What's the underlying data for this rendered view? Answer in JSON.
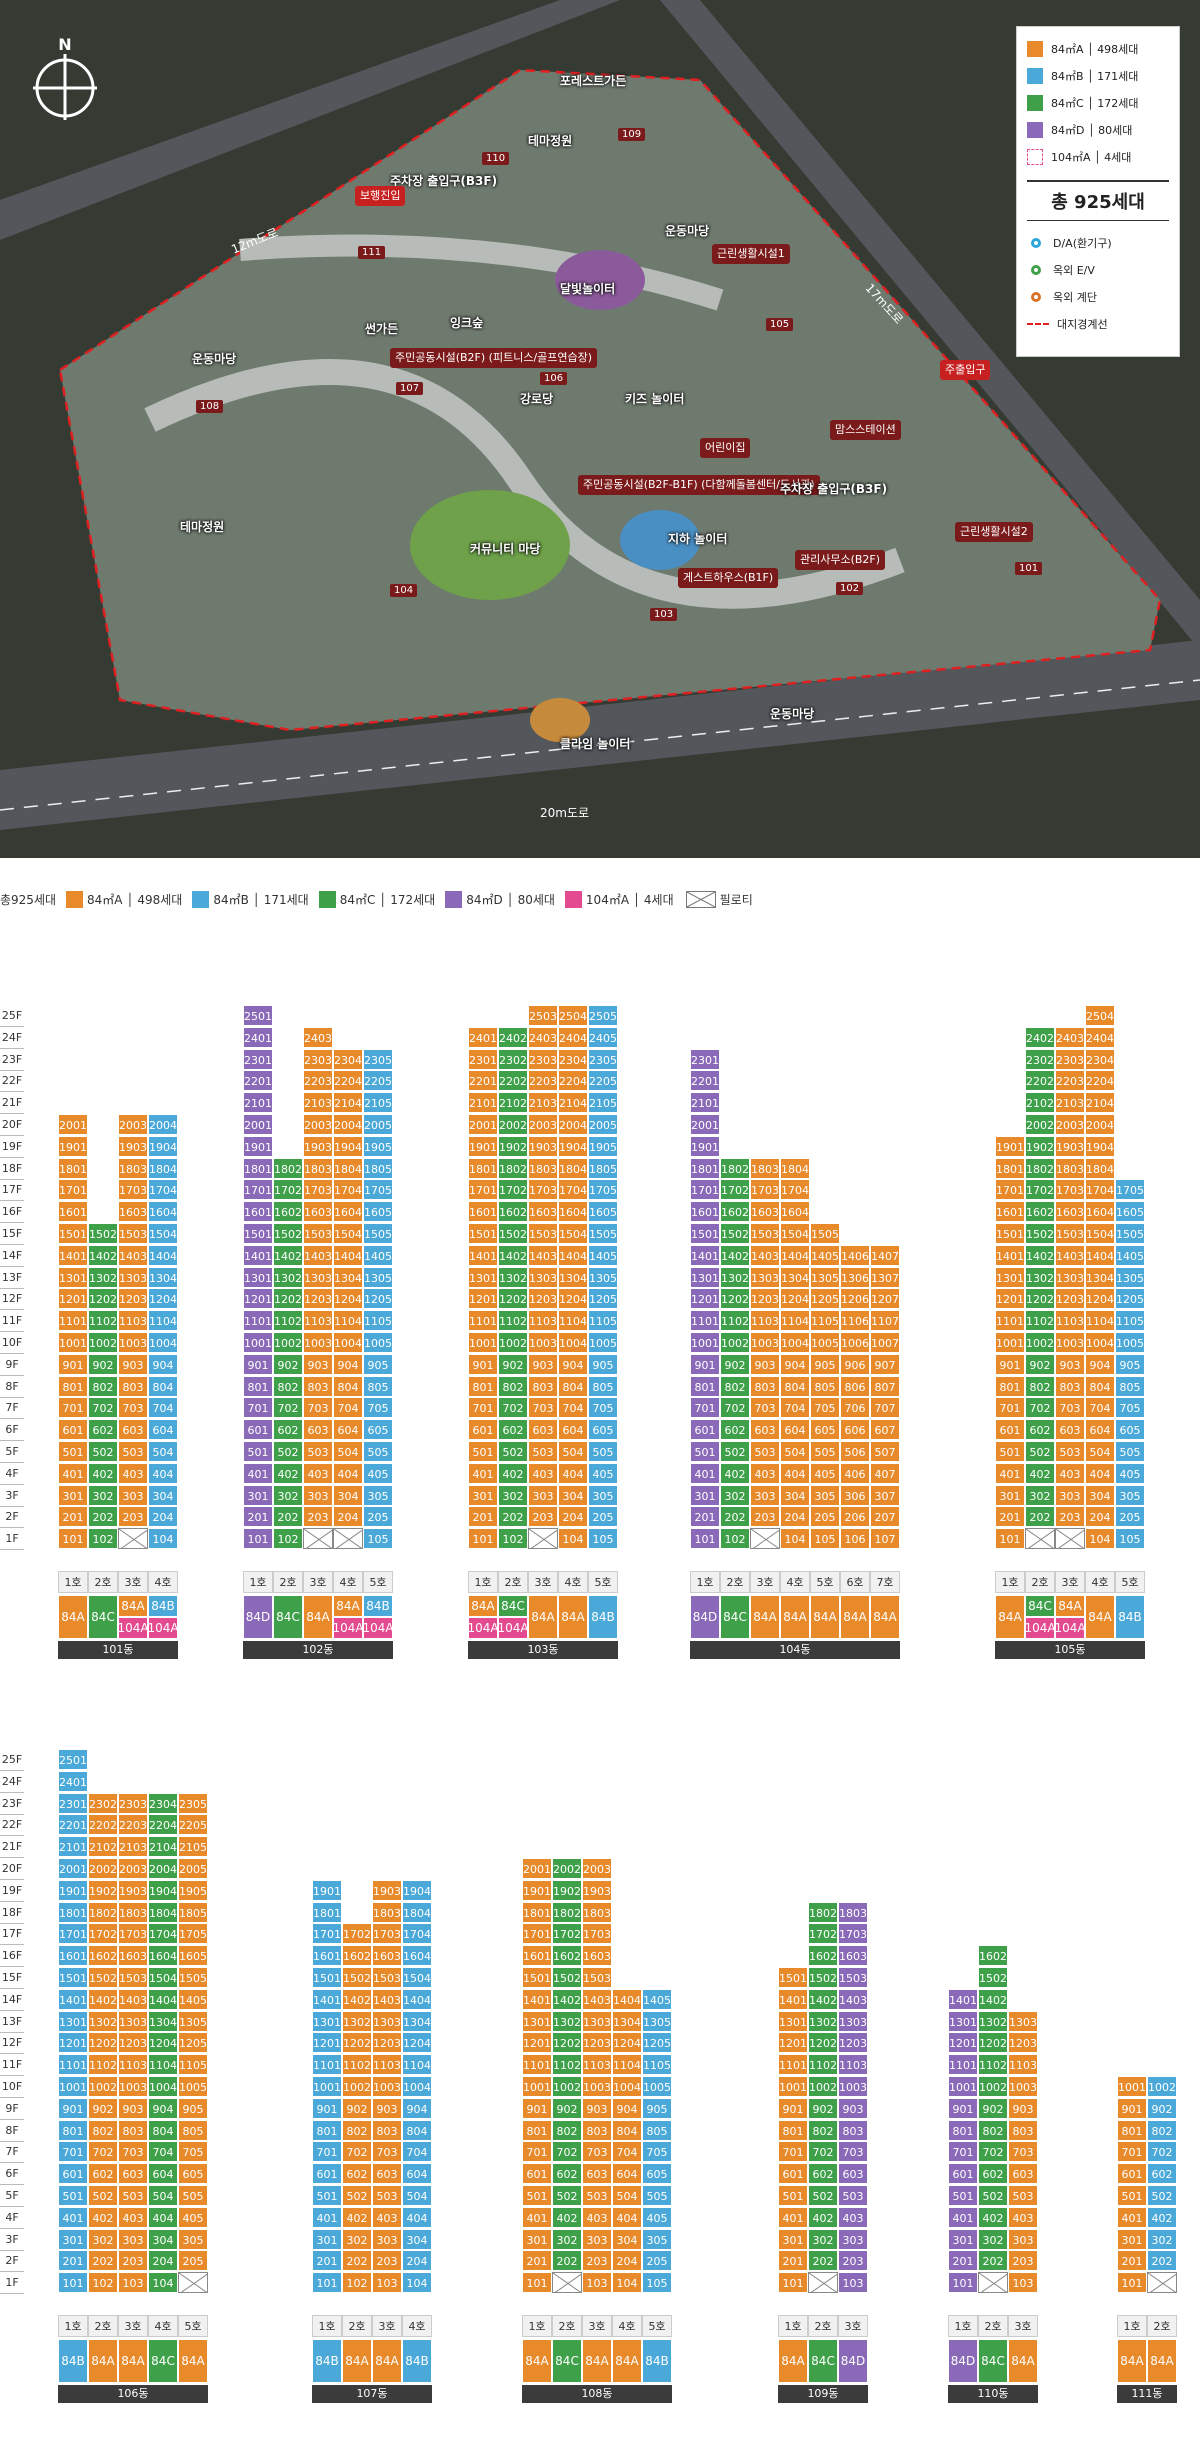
{
  "colors": {
    "A": "#e8892a",
    "B": "#4aa9d8",
    "C": "#3ea14a",
    "D": "#8a6ab8",
    "E": "#e44a8f"
  },
  "map": {
    "labels": [
      "포레스트가든",
      "테마정원",
      "주차장 출입구(B3F)",
      "운동마당",
      "근린생활시설1",
      "달빛놀이터",
      "썬가든",
      "잉크숲",
      "운동마당",
      "주민공동시설(B2F) (피트니스/골프연습장)",
      "강로당",
      "키즈 놀이터",
      "어린이집",
      "맘스스테이션",
      "테마정원",
      "주민공동시설(B2F-B1F) (다함께돌봄센터/도서관)",
      "커뮤니티 마당",
      "지하 놀이터",
      "주차장 출입구(B3F)",
      "근린생활시설2",
      "관리사무소(B2F)",
      "게스트하우스(B1F)",
      "운동마당",
      "클라임 놀이터",
      "보행진입",
      "주출입구",
      "12m도로",
      "17m도로",
      "20m도로"
    ],
    "buildings": [
      "110",
      "109",
      "111",
      "105",
      "106",
      "107",
      "108",
      "104",
      "103",
      "102",
      "101"
    ]
  },
  "legend": {
    "items": [
      {
        "k": "A",
        "t": "84㎡A │ 498세대"
      },
      {
        "k": "B",
        "t": "84㎡B │ 171세대"
      },
      {
        "k": "C",
        "t": "84㎡C │ 172세대"
      },
      {
        "k": "D",
        "t": "84㎡D │ 80세대"
      },
      {
        "k": "E",
        "t": "104㎡A │ 4세대"
      }
    ],
    "total": "총 925세대",
    "icons": [
      "D/A(환기구)",
      "옥외 E/V",
      "옥외 계단",
      "대지경계선"
    ]
  },
  "legend2": {
    "title": "총925세대",
    "items": [
      {
        "k": "A",
        "t": "84㎡A │ 498세대"
      },
      {
        "k": "B",
        "t": "84㎡B │ 171세대"
      },
      {
        "k": "C",
        "t": "84㎡C │ 172세대"
      },
      {
        "k": "D",
        "t": "84㎡D │ 80세대"
      },
      {
        "k": "E",
        "t": "104㎡A │ 4세대"
      }
    ],
    "pilotis": "필로티"
  },
  "type_labels": {
    "A": "84A",
    "B": "84B",
    "C": "84C",
    "D": "84D",
    "E": "104A"
  },
  "ho_suffix": "호",
  "dong_suffix": "동",
  "buildings": [
    {
      "dong": "101",
      "row": 0,
      "cols": [
        {
          "ty": "A",
          "top": 20,
          "pil": []
        },
        {
          "ty": "C",
          "top": 15,
          "pil": []
        },
        {
          "ty": "A",
          "top": 20,
          "pil": [
            1
          ],
          "pent": 21
        },
        {
          "ty": "B",
          "top": 20,
          "pil": []
        }
      ],
      "types": [
        [
          "A"
        ],
        [
          "C"
        ],
        [
          "A",
          "E"
        ],
        [
          "B",
          "E"
        ]
      ]
    },
    {
      "dong": "102",
      "row": 0,
      "cols": [
        {
          "ty": "D",
          "top": 25,
          "pil": []
        },
        {
          "ty": "C",
          "top": 18,
          "pil": []
        },
        {
          "ty": "A",
          "top": 24,
          "pil": [
            1
          ]
        },
        {
          "ty": "A",
          "top": 23,
          "pil": [
            1
          ],
          "pent": 24
        },
        {
          "ty": "B",
          "top": 23,
          "pil": []
        }
      ],
      "types": [
        [
          "D"
        ],
        [
          "C"
        ],
        [
          "A"
        ],
        [
          "A",
          "E"
        ],
        [
          "B",
          "E"
        ]
      ]
    },
    {
      "dong": "103",
      "row": 0,
      "cols": [
        {
          "ty": "A",
          "top": 24,
          "pil": [],
          "pent": 25
        },
        {
          "ty": "C",
          "top": 24,
          "pil": []
        },
        {
          "ty": "A",
          "top": 25,
          "pil": [
            1
          ]
        },
        {
          "ty": "A",
          "top": 25,
          "pil": []
        },
        {
          "ty": "B",
          "top": 25,
          "pil": []
        }
      ],
      "types": [
        [
          "A",
          "E"
        ],
        [
          "C",
          "E"
        ],
        [
          "A"
        ],
        [
          "A"
        ],
        [
          "B"
        ]
      ]
    },
    {
      "dong": "104",
      "row": 0,
      "cols": [
        {
          "ty": "D",
          "top": 23,
          "pil": []
        },
        {
          "ty": "C",
          "top": 18,
          "pil": []
        },
        {
          "ty": "A",
          "top": 18,
          "pil": [
            1
          ]
        },
        {
          "ty": "A",
          "top": 18,
          "pil": []
        },
        {
          "ty": "A",
          "top": 15,
          "pil": []
        },
        {
          "ty": "A",
          "top": 14,
          "pil": []
        },
        {
          "ty": "A",
          "top": 14,
          "pil": []
        }
      ],
      "types": [
        [
          "D"
        ],
        [
          "C"
        ],
        [
          "A"
        ],
        [
          "A"
        ],
        [
          "A"
        ],
        [
          "A"
        ],
        [
          "A"
        ]
      ]
    },
    {
      "dong": "105",
      "row": 0,
      "cols": [
        {
          "ty": "A",
          "top": 19,
          "pil": []
        },
        {
          "ty": "C",
          "top": 24,
          "pil": [
            1
          ],
          "pent": 25
        },
        {
          "ty": "A",
          "top": 24,
          "pil": [
            1
          ],
          "pent": 25
        },
        {
          "ty": "A",
          "top": 25,
          "pil": []
        },
        {
          "ty": "B",
          "top": 17,
          "pil": []
        }
      ],
      "types": [
        [
          "A"
        ],
        [
          "C",
          "E"
        ],
        [
          "A",
          "E"
        ],
        [
          "A"
        ],
        [
          "B"
        ]
      ]
    },
    {
      "dong": "106",
      "row": 1,
      "cols": [
        {
          "ty": "B",
          "top": 25,
          "pil": []
        },
        {
          "ty": "A",
          "top": 23,
          "pil": []
        },
        {
          "ty": "A",
          "top": 23,
          "pil": []
        },
        {
          "ty": "C",
          "top": 23,
          "pil": []
        },
        {
          "ty": "A",
          "top": 23,
          "pil": [
            1
          ]
        }
      ],
      "types": [
        [
          "B"
        ],
        [
          "A"
        ],
        [
          "A"
        ],
        [
          "C"
        ],
        [
          "A"
        ]
      ]
    },
    {
      "dong": "107",
      "row": 1,
      "cols": [
        {
          "ty": "B",
          "top": 19,
          "pil": []
        },
        {
          "ty": "A",
          "top": 17,
          "pil": []
        },
        {
          "ty": "A",
          "top": 19,
          "pil": []
        },
        {
          "ty": "B",
          "top": 19,
          "pil": []
        }
      ],
      "types": [
        [
          "B"
        ],
        [
          "A"
        ],
        [
          "A"
        ],
        [
          "B"
        ]
      ]
    },
    {
      "dong": "108",
      "row": 1,
      "cols": [
        {
          "ty": "A",
          "top": 20,
          "pil": []
        },
        {
          "ty": "C",
          "top": 20,
          "pil": [
            1
          ]
        },
        {
          "ty": "A",
          "top": 20,
          "pil": []
        },
        {
          "ty": "A",
          "top": 14,
          "pil": []
        },
        {
          "ty": "B",
          "top": 14,
          "pil": []
        }
      ],
      "types": [
        [
          "A"
        ],
        [
          "C"
        ],
        [
          "A"
        ],
        [
          "A"
        ],
        [
          "B"
        ]
      ]
    },
    {
      "dong": "109",
      "row": 1,
      "cols": [
        {
          "ty": "A",
          "top": 15,
          "pil": []
        },
        {
          "ty": "C",
          "top": 18,
          "pil": [
            1
          ]
        },
        {
          "ty": "D",
          "top": 18,
          "pil": []
        }
      ],
      "types": [
        [
          "A"
        ],
        [
          "C"
        ],
        [
          "D"
        ]
      ]
    },
    {
      "dong": "110",
      "row": 1,
      "cols": [
        {
          "ty": "D",
          "top": 14,
          "pil": []
        },
        {
          "ty": "C",
          "top": 16,
          "pil": [
            1
          ]
        },
        {
          "ty": "A",
          "top": 13,
          "pil": []
        }
      ],
      "types": [
        [
          "D"
        ],
        [
          "C"
        ],
        [
          "A"
        ]
      ]
    },
    {
      "dong": "111",
      "row": 1,
      "cols": [
        {
          "ty": "A",
          "top": 10,
          "pil": []
        },
        {
          "ty": "B",
          "top": 10,
          "pil": [
            1
          ]
        }
      ],
      "types": [
        [
          "A"
        ],
        [
          "A"
        ]
      ]
    }
  ]
}
